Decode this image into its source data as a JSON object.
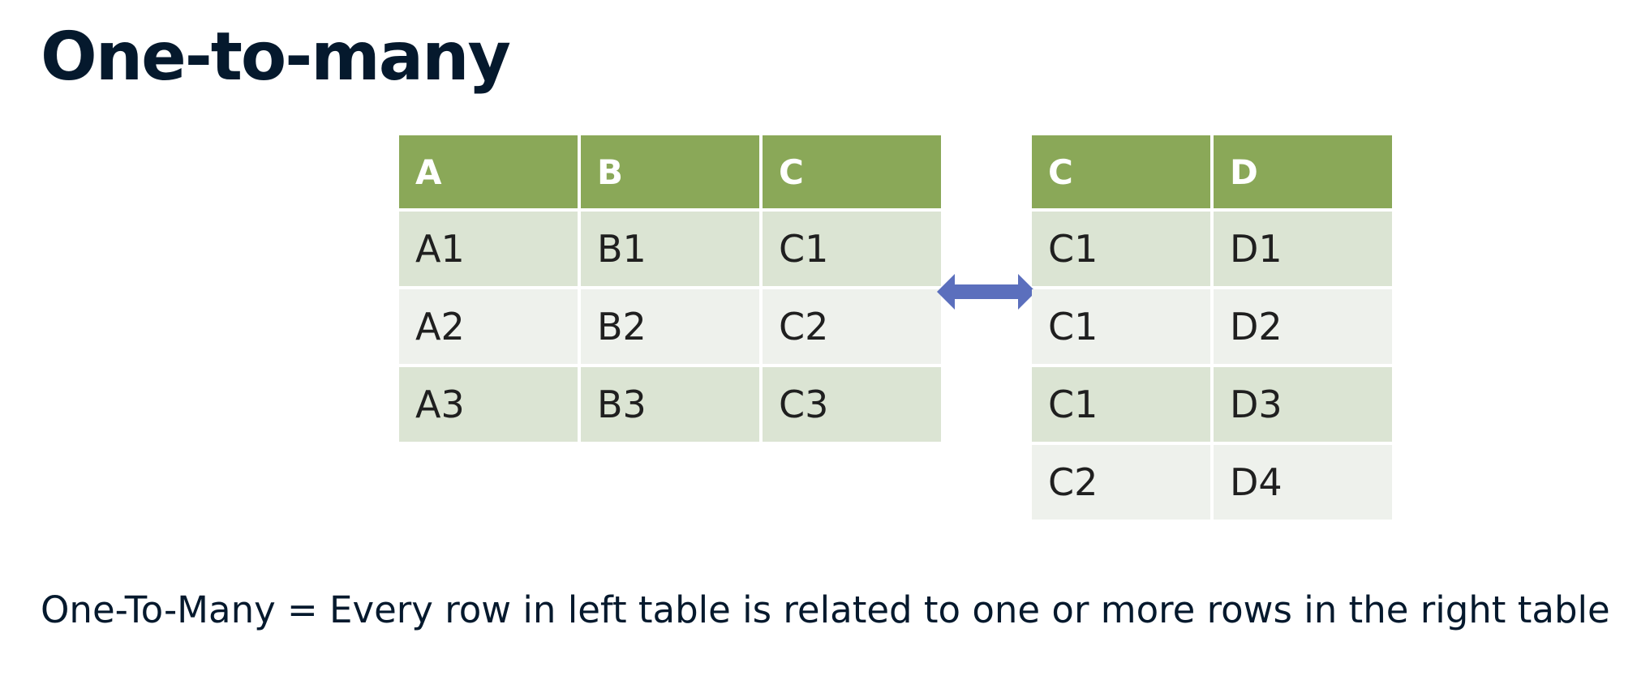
{
  "title": "One-to-many",
  "left_table": {
    "headers": [
      "A",
      "B",
      "C"
    ],
    "rows": [
      [
        "A1",
        "B1",
        "C1"
      ],
      [
        "A2",
        "B2",
        "C2"
      ],
      [
        "A3",
        "B3",
        "C3"
      ]
    ]
  },
  "right_table": {
    "headers": [
      "C",
      "D"
    ],
    "rows": [
      [
        "C1",
        "D1"
      ],
      [
        "C1",
        "D2"
      ],
      [
        "C1",
        "D3"
      ],
      [
        "C2",
        "D4"
      ]
    ]
  },
  "relation_icon": "double-headed-arrow-icon",
  "caption": "One-To-Many = Every row in left table is related to one or more rows in the right table",
  "colors": {
    "header_bg": "#8aa858",
    "row_odd_bg": "#dbe4d3",
    "row_even_bg": "#eef1ec",
    "arrow": "#5b6fbd",
    "title_text": "#05192d"
  }
}
